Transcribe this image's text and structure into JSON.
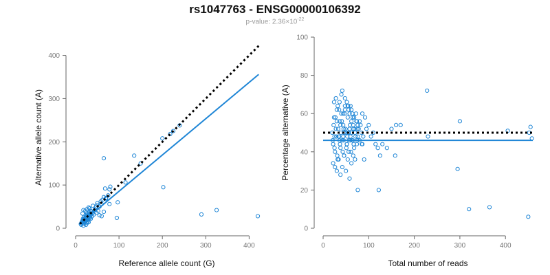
{
  "title": "rs1047763 - ENSG00000106392",
  "subtitle": {
    "text": "p-value: 2.36×10",
    "exponent": "-22"
  },
  "colors": {
    "points": "#1f86d6",
    "fit_line": "#1f86d6",
    "reference_line": "#000000",
    "axis": "#666666",
    "tick_label": "#777777"
  },
  "chart_data": [
    {
      "type": "scatter",
      "xlabel": "Reference allele count (G)",
      "ylabel": "Alternative allele count (A)",
      "xlim": [
        0,
        420
      ],
      "ylim": [
        0,
        420
      ],
      "xticks": [
        "0",
        "100",
        "200",
        "300",
        "400"
      ],
      "yticks": [
        "0",
        "100",
        "200",
        "300",
        "400"
      ],
      "grid": false,
      "points": {
        "x": [
          12,
          14,
          15,
          16,
          17,
          18,
          19,
          20,
          21,
          22,
          23,
          24,
          25,
          26,
          27,
          28,
          29,
          30,
          31,
          32,
          33,
          34,
          35,
          36,
          38,
          40,
          42,
          13,
          15,
          17,
          19,
          21,
          23,
          25,
          27,
          29,
          31,
          33,
          18,
          20,
          22,
          24,
          26,
          28,
          30,
          16,
          22,
          26,
          32,
          36,
          44,
          46,
          48,
          50,
          52,
          55,
          58,
          60,
          62,
          65,
          70,
          75,
          78,
          80,
          18,
          24,
          30,
          35,
          40,
          45,
          50,
          55,
          60,
          65,
          95,
          97,
          65,
          68,
          70,
          78,
          115,
          135,
          150,
          200,
          202,
          218,
          225,
          240,
          290,
          325,
          420
        ],
        "y": [
          10,
          14,
          12,
          18,
          16,
          20,
          14,
          22,
          18,
          24,
          20,
          26,
          22,
          28,
          24,
          30,
          20,
          26,
          28,
          32,
          24,
          30,
          22,
          34,
          28,
          36,
          32,
          8,
          12,
          22,
          26,
          16,
          30,
          18,
          34,
          22,
          36,
          26,
          6,
          10,
          14,
          8,
          12,
          16,
          14,
          34,
          40,
          44,
          46,
          38,
          42,
          48,
          36,
          54,
          40,
          50,
          62,
          56,
          66,
          72,
          70,
          76,
          90,
          96,
          42,
          36,
          48,
          40,
          52,
          44,
          58,
          30,
          28,
          38,
          24,
          60,
          162,
          92,
          68,
          56,
          106,
          168,
          150,
          208,
          95,
          218,
          225,
          238,
          32,
          42,
          28
        ],
        "fit_line": {
          "x1": 10,
          "y1": 10,
          "x2": 422,
          "y2": 356
        },
        "reference_line": {
          "x1": 10,
          "y1": 10,
          "x2": 422,
          "y2": 422
        }
      }
    },
    {
      "type": "scatter",
      "xlabel": "Total number of reads",
      "ylabel": "Percentage alternative (A)",
      "xlim": [
        0,
        460
      ],
      "ylim": [
        0,
        100
      ],
      "xticks": [
        "0",
        "100",
        "200",
        "300",
        "400"
      ],
      "yticks": [
        "0",
        "20",
        "40",
        "60",
        "80",
        "100"
      ],
      "grid": false,
      "points": {
        "x": [
          20,
          22,
          24,
          26,
          28,
          30,
          32,
          34,
          36,
          38,
          40,
          42,
          44,
          46,
          48,
          50,
          52,
          54,
          56,
          58,
          60,
          62,
          64,
          66,
          68,
          70,
          72,
          74,
          76,
          78,
          80,
          82,
          84,
          86,
          88,
          21,
          23,
          25,
          27,
          29,
          31,
          33,
          35,
          37,
          39,
          41,
          43,
          45,
          47,
          49,
          51,
          53,
          55,
          57,
          59,
          61,
          63,
          65,
          67,
          69,
          71,
          73,
          75,
          22,
          26,
          30,
          34,
          38,
          42,
          46,
          50,
          54,
          58,
          62,
          66,
          70,
          24,
          28,
          32,
          36,
          40,
          44,
          48,
          52,
          56,
          60,
          64,
          68,
          25,
          35,
          45,
          55,
          65,
          75,
          85,
          95,
          100,
          105,
          110,
          115,
          120,
          125,
          130,
          140,
          150,
          160,
          170,
          42,
          48,
          54,
          58,
          62,
          68,
          74,
          80,
          86,
          92,
          30,
          38,
          46,
          56,
          66,
          76,
          36,
          44,
          52,
          60,
          76,
          90,
          122,
          158,
          228,
          230,
          295,
          300,
          320,
          365,
          405,
          450,
          452,
          455,
          458
        ],
        "y": [
          50,
          44,
          58,
          40,
          52,
          62,
          36,
          48,
          56,
          42,
          60,
          46,
          54,
          38,
          64,
          50,
          44,
          58,
          40,
          52,
          48,
          56,
          46,
          54,
          42,
          50,
          60,
          44,
          48,
          52,
          46,
          54,
          50,
          44,
          48,
          46,
          54,
          42,
          58,
          48,
          38,
          52,
          62,
          44,
          50,
          56,
          40,
          46,
          60,
          52,
          42,
          48,
          64,
          46,
          54,
          40,
          50,
          58,
          44,
          52,
          48,
          56,
          46,
          34,
          32,
          30,
          36,
          28,
          32,
          38,
          30,
          36,
          26,
          34,
          38,
          36,
          66,
          68,
          64,
          66,
          70,
          60,
          62,
          66,
          62,
          64,
          60,
          58,
          48,
          48,
          52,
          50,
          46,
          52,
          44,
          52,
          54,
          48,
          50,
          44,
          42,
          38,
          44,
          42,
          52,
          54,
          54,
          72,
          68,
          64,
          60,
          62,
          58,
          56,
          56,
          60,
          58,
          56,
          54,
          50,
          50,
          52,
          54,
          46,
          48,
          44,
          46,
          20,
          36,
          20,
          38,
          72,
          48,
          31,
          56,
          10,
          11,
          51,
          6,
          50,
          53,
          47
        ],
        "fit_line": {
          "x1": 0,
          "y1": 46,
          "x2": 460,
          "y2": 46
        },
        "reference_line": {
          "x1": 0,
          "y1": 50,
          "x2": 460,
          "y2": 50
        }
      }
    }
  ]
}
